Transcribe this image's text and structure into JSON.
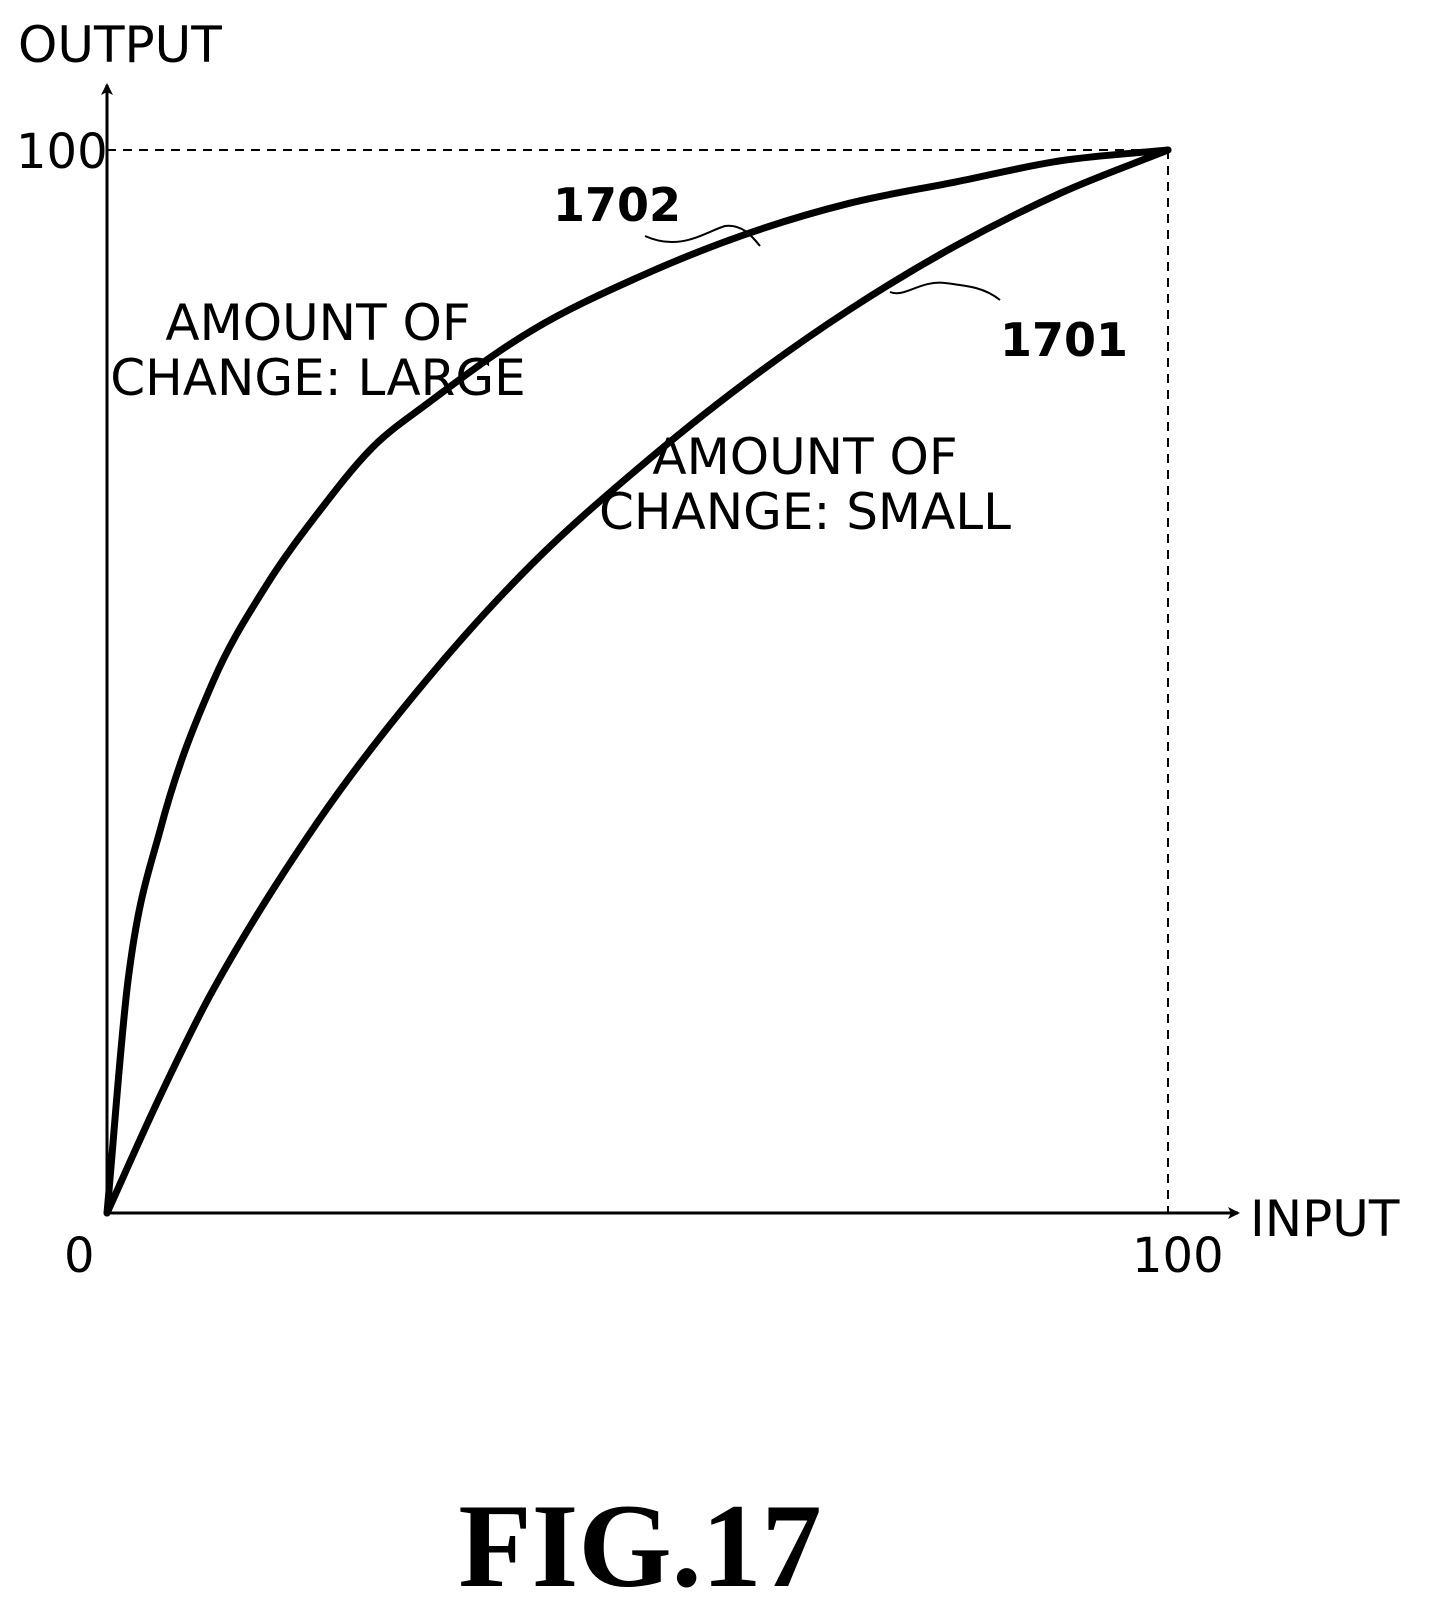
{
  "chart_data": {
    "type": "line",
    "title": "",
    "xlabel": "INPUT",
    "ylabel": "OUTPUT",
    "xlim": [
      0,
      100
    ],
    "ylim": [
      0,
      100
    ],
    "grid": false,
    "x_ticks": [
      "0",
      "100"
    ],
    "y_ticks": [
      "100"
    ],
    "series": [
      {
        "ref": "1702",
        "label_lines": [
          "AMOUNT OF",
          "CHANGE: LARGE"
        ],
        "x": [
          0,
          2,
          5,
          10,
          15,
          20,
          25,
          30,
          40,
          50,
          60,
          70,
          80,
          90,
          100
        ],
        "y": [
          0,
          22,
          36,
          50,
          59,
          66,
          72,
          76,
          83,
          88,
          92,
          95,
          97,
          99,
          100
        ]
      },
      {
        "ref": "1701",
        "label_lines": [
          "AMOUNT OF",
          "CHANGE: SMALL"
        ],
        "x": [
          0,
          5,
          10,
          20,
          30,
          40,
          50,
          60,
          70,
          80,
          90,
          100
        ],
        "y": [
          0,
          11,
          21,
          37,
          50,
          61,
          70,
          78,
          85,
          91,
          96,
          100
        ]
      }
    ]
  },
  "figure_label": "FIG.17"
}
